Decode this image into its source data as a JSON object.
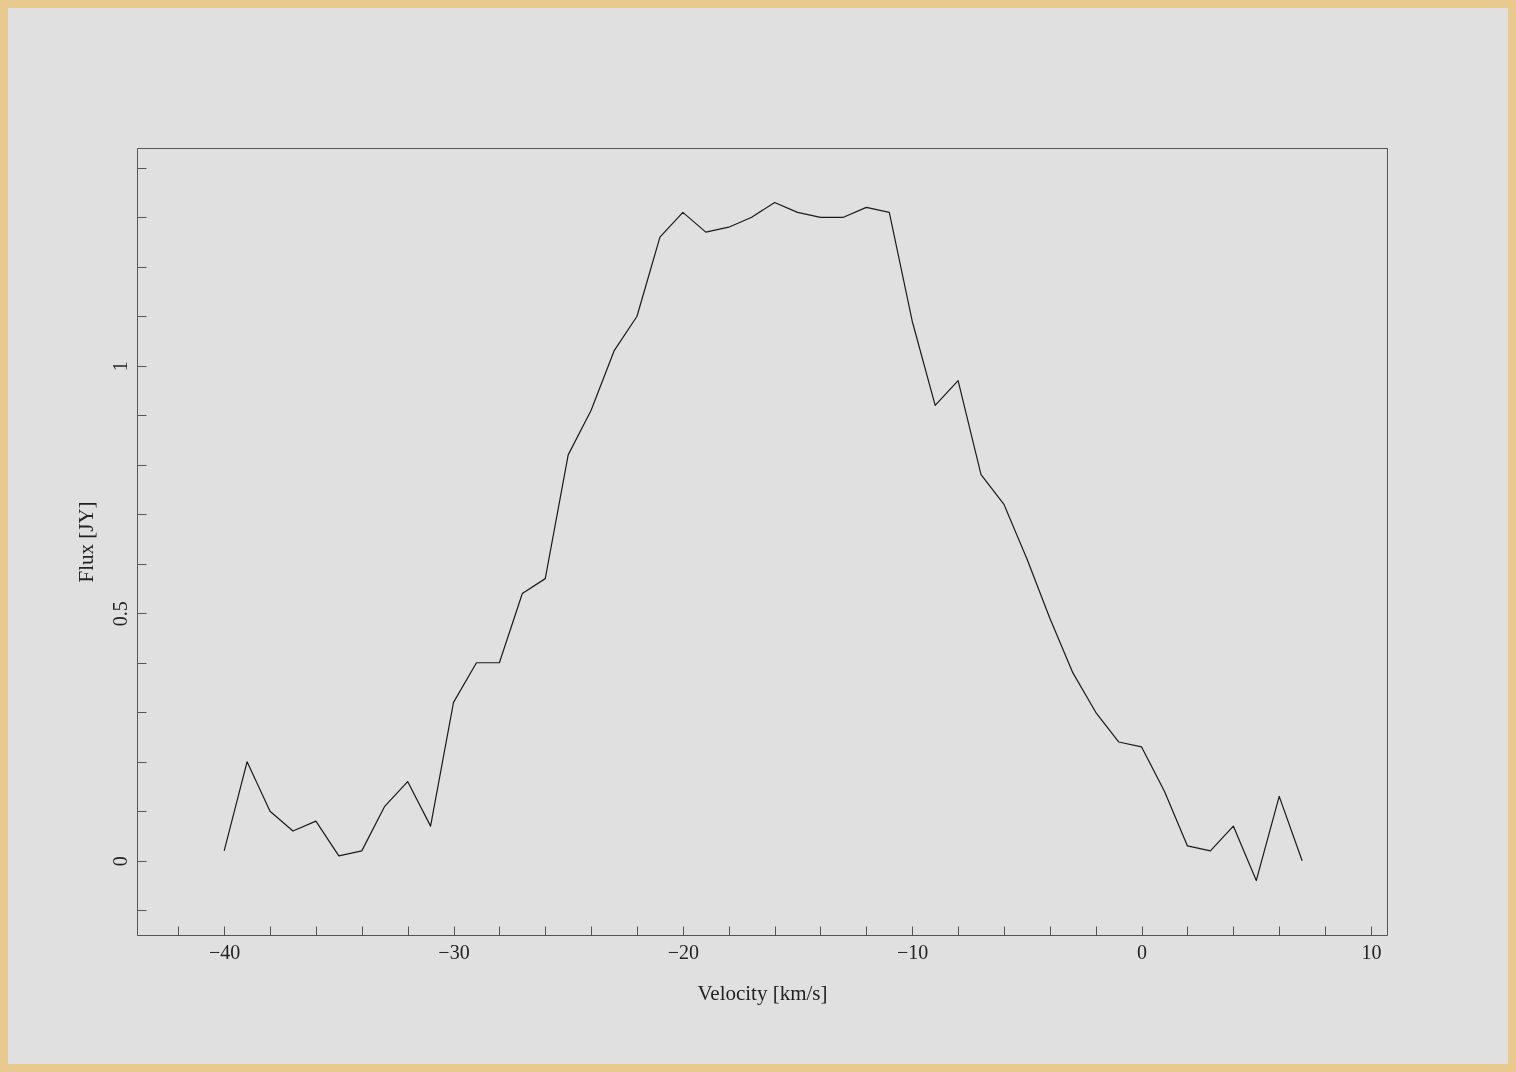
{
  "chart_data": {
    "type": "line",
    "xlabel": "Velocity [km/s]",
    "ylabel": "Flux [JY]",
    "x": [
      -40,
      -39,
      -38,
      -37,
      -36,
      -35,
      -34,
      -33,
      -32,
      -31,
      -30,
      -29,
      -28,
      -27,
      -26,
      -25,
      -24,
      -23,
      -22,
      -21,
      -20,
      -19,
      -18,
      -17,
      -16,
      -15,
      -14,
      -13,
      -12,
      -11,
      -10,
      -9,
      -8,
      -7,
      -6,
      -5,
      -4,
      -3,
      -2,
      -1,
      0,
      1,
      2,
      3,
      4,
      5,
      6,
      7
    ],
    "series": [
      {
        "color": "#1a1a1a",
        "values": [
          0.02,
          0.2,
          0.1,
          0.06,
          0.08,
          0.01,
          0.02,
          0.11,
          0.16,
          0.07,
          0.32,
          0.4,
          0.4,
          0.54,
          0.57,
          0.82,
          0.91,
          1.03,
          1.1,
          1.26,
          1.31,
          1.27,
          1.28,
          1.3,
          1.33,
          1.31,
          1.3,
          1.3,
          1.32,
          1.31,
          1.09,
          0.92,
          0.97,
          0.78,
          0.72,
          0.61,
          0.49,
          0.38,
          0.3,
          0.24,
          0.23,
          0.14,
          0.03,
          0.02,
          0.07,
          -0.04,
          0.13,
          0.0
        ]
      }
    ],
    "xlim": [
      -43.8,
      10.7
    ],
    "ylim": [
      -0.15,
      1.44
    ],
    "xticks": [
      {
        "value": -42,
        "label": null
      },
      -40,
      {
        "value": -38,
        "label": null
      },
      {
        "value": -36,
        "label": null
      },
      {
        "value": -34,
        "label": null
      },
      {
        "value": -32,
        "label": null
      },
      -30,
      {
        "value": -28,
        "label": null
      },
      {
        "value": -26,
        "label": null
      },
      {
        "value": -24,
        "label": null
      },
      {
        "value": -22,
        "label": null
      },
      -20,
      {
        "value": -18,
        "label": null
      },
      {
        "value": -16,
        "label": null
      },
      {
        "value": -14,
        "label": null
      },
      {
        "value": -12,
        "label": null
      },
      -10,
      {
        "value": -8,
        "label": null
      },
      {
        "value": -6,
        "label": null
      },
      {
        "value": -4,
        "label": null
      },
      {
        "value": -2,
        "label": null
      },
      0,
      {
        "value": 2,
        "label": null
      },
      {
        "value": 4,
        "label": null
      },
      {
        "value": 6,
        "label": null
      },
      {
        "value": 8,
        "label": null
      },
      10
    ],
    "yticks": [
      {
        "value": -0.1,
        "label": null
      },
      0,
      {
        "value": 0.1,
        "label": null
      },
      {
        "value": 0.2,
        "label": null
      },
      {
        "value": 0.3,
        "label": null
      },
      {
        "value": 0.4,
        "label": null
      },
      0.5,
      {
        "value": 0.6,
        "label": null
      },
      {
        "value": 0.7,
        "label": null
      },
      {
        "value": 0.8,
        "label": null
      },
      {
        "value": 0.9,
        "label": null
      },
      1,
      {
        "value": 1.1,
        "label": null
      },
      {
        "value": 1.2,
        "label": null
      },
      {
        "value": 1.3,
        "label": null
      },
      {
        "value": 1.4,
        "label": null
      }
    ],
    "grid": false,
    "marker": "none",
    "line_style": "solid"
  }
}
